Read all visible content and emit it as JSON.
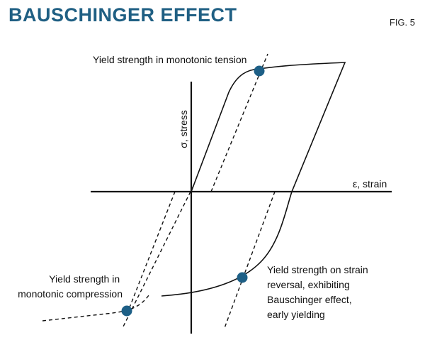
{
  "header": {
    "title": "BAUSCHINGER EFFECT",
    "fig_label": "FIG. 5"
  },
  "axes": {
    "y_label": "σ, stress",
    "x_label": "ε, strain"
  },
  "annotations": {
    "tension": [
      "Yield strength in monotonic tension"
    ],
    "compression": [
      "Yield strength in",
      "monotonic compression"
    ],
    "reversal": [
      "Yield strength on strain",
      "reversal, exhibiting",
      "Bauschinger effect,",
      "early yielding"
    ]
  },
  "colors": {
    "title": "#1f5f83",
    "marker": "#1d5f86",
    "line": "#111111"
  }
}
